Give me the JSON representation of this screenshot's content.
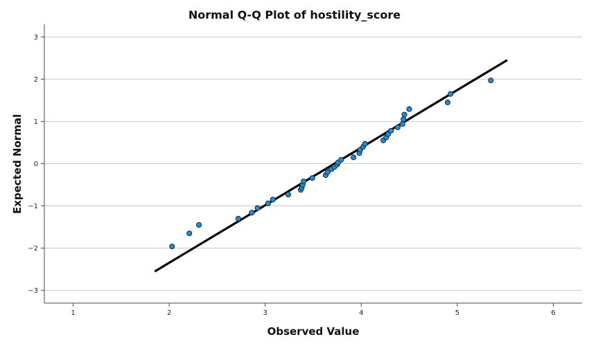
{
  "chart_data": {
    "type": "scatter",
    "title": "Normal Q-Q Plot of hostility_score",
    "xlabel": "Observed Value",
    "ylabel": "Expected Normal",
    "xlim": [
      0.7,
      6.3
    ],
    "ylim": [
      -3.3,
      3.3
    ],
    "x_ticks": [
      "1",
      "2",
      "3",
      "4",
      "5",
      "6"
    ],
    "y_ticks": [
      "3",
      "2",
      "1",
      "0",
      "−1",
      "−2",
      "−3"
    ],
    "grid": "horizontal",
    "legend": "none",
    "point_color": "#1f8dd6",
    "line_color": "#000000",
    "grid_color": "#c8c8c8",
    "reference_line": {
      "x": [
        1.85,
        5.52
      ],
      "y": [
        -2.55,
        2.45
      ]
    },
    "points": [
      {
        "x": 2.03,
        "y": -1.96
      },
      {
        "x": 2.21,
        "y": -1.65
      },
      {
        "x": 2.31,
        "y": -1.45
      },
      {
        "x": 2.72,
        "y": -1.3
      },
      {
        "x": 2.86,
        "y": -1.16
      },
      {
        "x": 2.92,
        "y": -1.05
      },
      {
        "x": 3.03,
        "y": -0.94
      },
      {
        "x": 3.08,
        "y": -0.85
      },
      {
        "x": 3.24,
        "y": -0.73
      },
      {
        "x": 3.37,
        "y": -0.62
      },
      {
        "x": 3.38,
        "y": -0.57
      },
      {
        "x": 3.39,
        "y": -0.5
      },
      {
        "x": 3.4,
        "y": -0.42
      },
      {
        "x": 3.49,
        "y": -0.34
      },
      {
        "x": 3.63,
        "y": -0.27
      },
      {
        "x": 3.65,
        "y": -0.2
      },
      {
        "x": 3.69,
        "y": -0.13
      },
      {
        "x": 3.72,
        "y": -0.08
      },
      {
        "x": 3.75,
        "y": -0.02
      },
      {
        "x": 3.76,
        "y": 0.03
      },
      {
        "x": 3.79,
        "y": 0.09
      },
      {
        "x": 3.92,
        "y": 0.15
      },
      {
        "x": 3.98,
        "y": 0.25
      },
      {
        "x": 3.99,
        "y": 0.33
      },
      {
        "x": 4.02,
        "y": 0.4
      },
      {
        "x": 4.04,
        "y": 0.47
      },
      {
        "x": 4.23,
        "y": 0.55
      },
      {
        "x": 4.26,
        "y": 0.62
      },
      {
        "x": 4.28,
        "y": 0.7
      },
      {
        "x": 4.31,
        "y": 0.78
      },
      {
        "x": 4.38,
        "y": 0.86
      },
      {
        "x": 4.43,
        "y": 0.94
      },
      {
        "x": 4.44,
        "y": 1.05
      },
      {
        "x": 4.45,
        "y": 1.16
      },
      {
        "x": 4.5,
        "y": 1.29
      },
      {
        "x": 4.9,
        "y": 1.45
      },
      {
        "x": 4.93,
        "y": 1.65
      },
      {
        "x": 5.35,
        "y": 1.97
      }
    ]
  }
}
